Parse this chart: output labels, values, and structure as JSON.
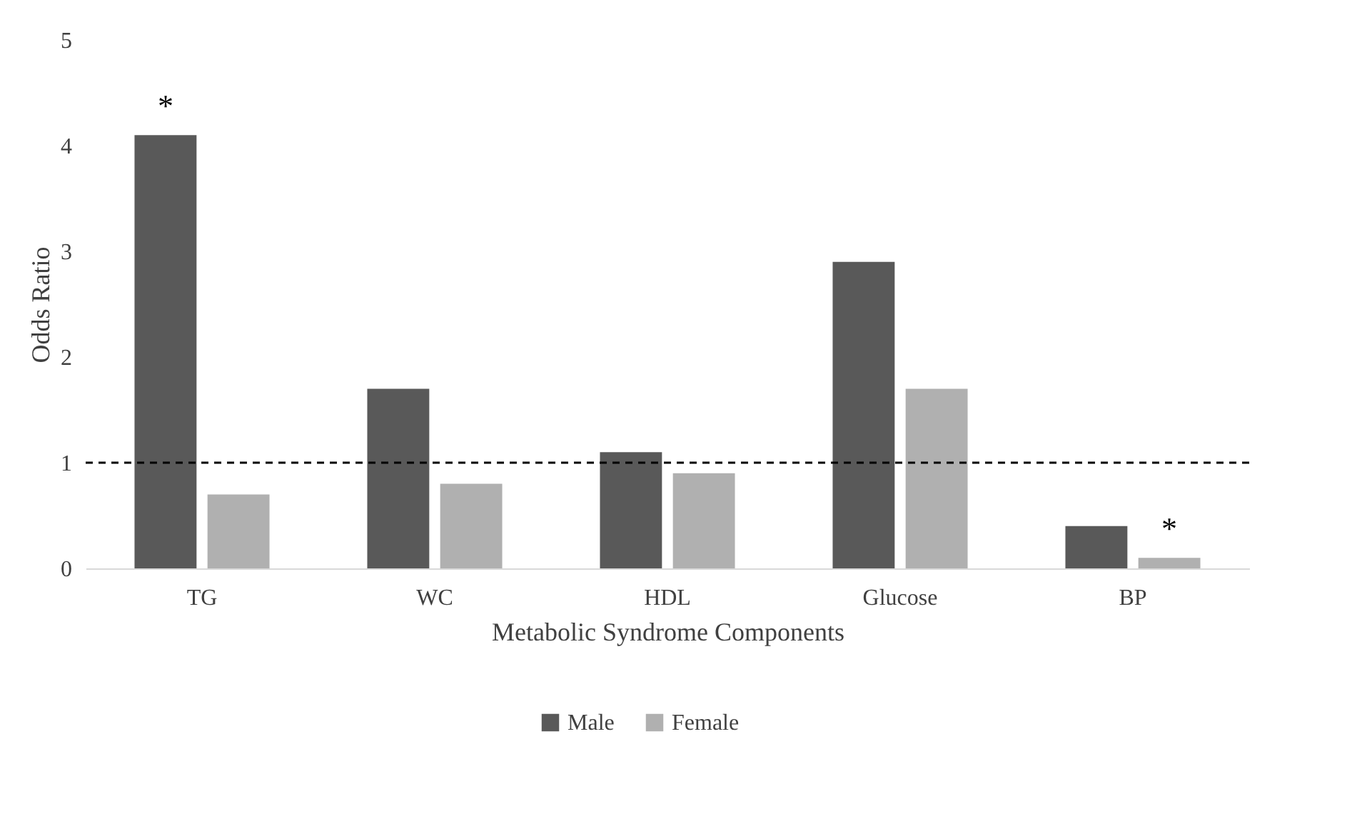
{
  "chart_data": {
    "type": "bar",
    "xlabel": "Metabolic Syndrome Components",
    "ylabel": "Odds Ratio",
    "categories": [
      "TG",
      "WC",
      "HDL",
      "Glucose",
      "BP"
    ],
    "series": [
      {
        "name": "Male",
        "color": "#595959",
        "values": [
          4.1,
          1.7,
          1.1,
          2.9,
          0.4
        ]
      },
      {
        "name": "Female",
        "color": "#b0b0b0",
        "values": [
          0.7,
          0.8,
          0.9,
          1.7,
          0.1
        ]
      }
    ],
    "ylim": [
      0,
      5
    ],
    "yticks": [
      0,
      1,
      2,
      3,
      4,
      5
    ],
    "grid": false,
    "legend": "bottom",
    "ref_lines": [
      {
        "axis": "y",
        "value": 1,
        "line_style": "dashed",
        "color": "#000000"
      }
    ],
    "annotations": [
      {
        "text": "*",
        "x": "TG",
        "y": 4.1
      },
      {
        "text": "*",
        "x": "BP",
        "y": 0.1
      }
    ]
  }
}
